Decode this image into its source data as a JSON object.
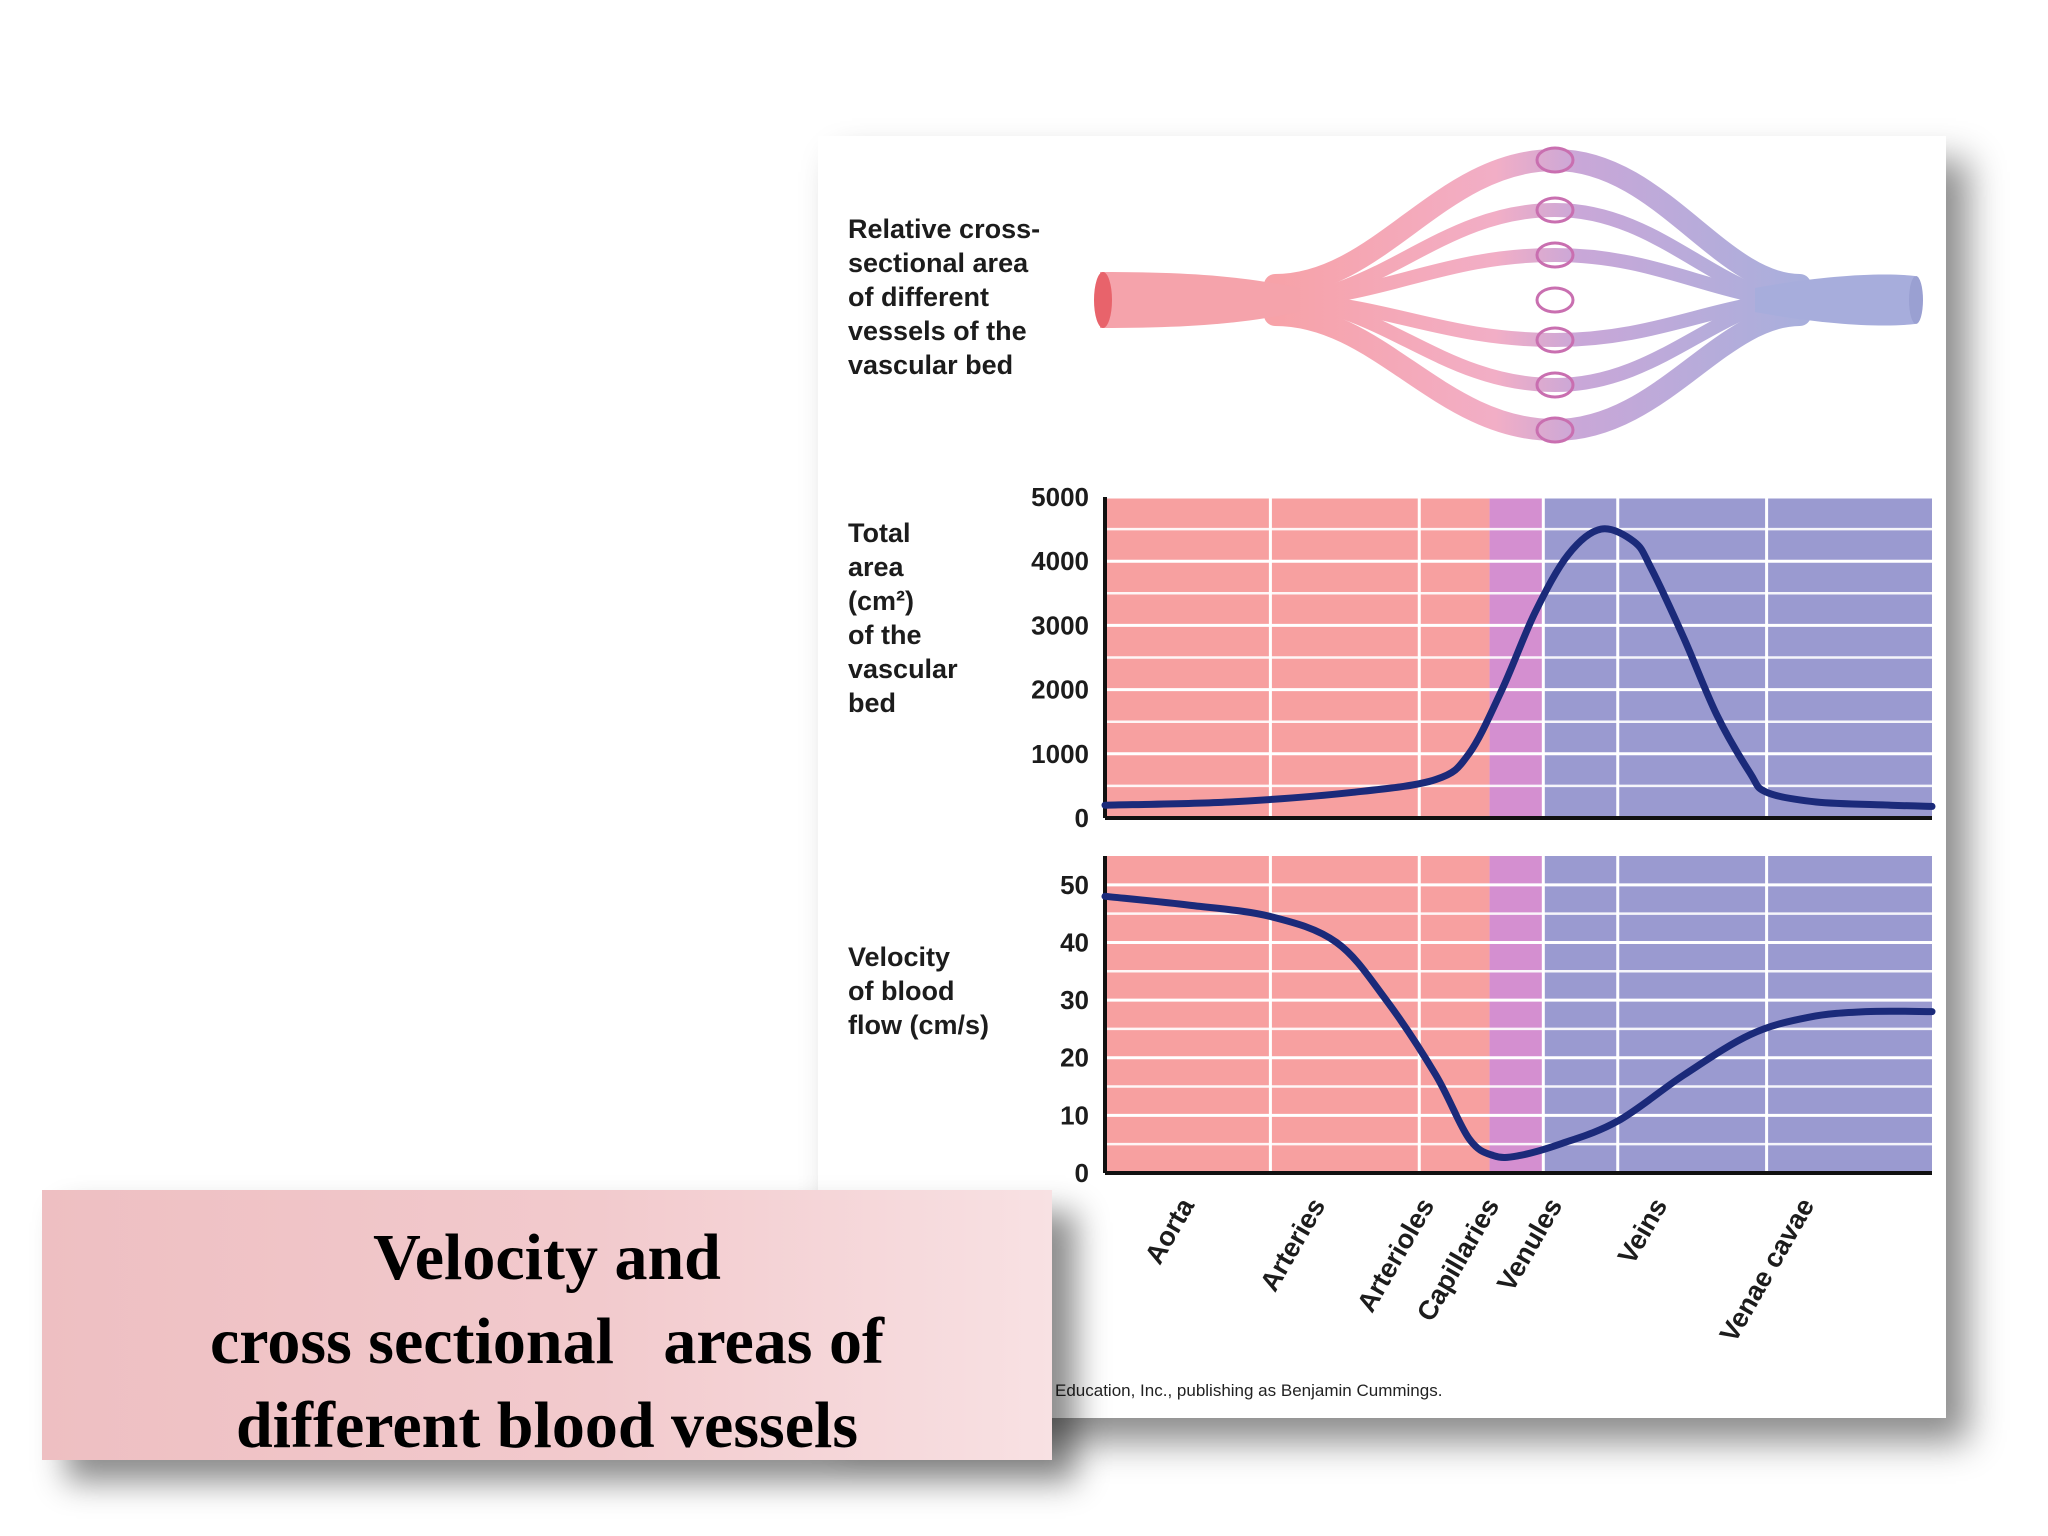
{
  "labels": {
    "vessel_diagram": "Relative cross-\nsectional area\nof different\nvessels of the\nvascular bed",
    "area_axis": "Total\narea\n(cm²)\nof the\nvascular\nbed",
    "velocity_axis": "Velocity\nof blood\nflow (cm/s)"
  },
  "credit": "Education, Inc., publishing as Benjamin Cummings.",
  "caption": {
    "line1": "Velocity and",
    "line2": "cross sectional   areas of",
    "line3": "different blood vessels"
  },
  "colors": {
    "arterial": "#f7a0a0",
    "capillary": "#d48fd0",
    "venous": "#9a9ad0",
    "curve": "#1b2a7a",
    "grid": "#ffffff"
  },
  "chart_data": [
    {
      "type": "line",
      "ylabel": "Total area (cm²) of the vascular bed",
      "ylim": [
        0,
        5000
      ],
      "y_ticks": [
        "0",
        "1000",
        "2000",
        "3000",
        "4000",
        "5000"
      ],
      "regions": [
        "Aorta",
        "Arteries",
        "Arterioles",
        "Capillaries",
        "Venules",
        "Veins",
        "Venae cavae"
      ],
      "series": [
        {
          "x": [
            0,
            15,
            30,
            40,
            44,
            48,
            52,
            56,
            60,
            64,
            66,
            70,
            74,
            78,
            80,
            86,
            95,
            100
          ],
          "values": [
            200,
            250,
            400,
            600,
            1000,
            2000,
            3200,
            4100,
            4500,
            4300,
            3900,
            2800,
            1600,
            700,
            400,
            250,
            200,
            180
          ]
        }
      ]
    },
    {
      "type": "line",
      "ylabel": "Velocity of blood flow (cm/s)",
      "ylim": [
        0,
        55
      ],
      "y_ticks": [
        "0",
        "10",
        "20",
        "30",
        "40",
        "50"
      ],
      "regions": [
        "Aorta",
        "Arteries",
        "Arterioles",
        "Capillaries",
        "Venules",
        "Veins",
        "Venae cavae"
      ],
      "series": [
        {
          "x": [
            0,
            10,
            20,
            28,
            34,
            40,
            44,
            47,
            50,
            55,
            62,
            70,
            78,
            85,
            92,
            100
          ],
          "values": [
            48,
            46.5,
            44.5,
            40,
            30,
            17,
            6,
            3,
            3,
            5,
            9,
            17,
            24,
            27,
            28,
            28
          ]
        }
      ]
    }
  ]
}
